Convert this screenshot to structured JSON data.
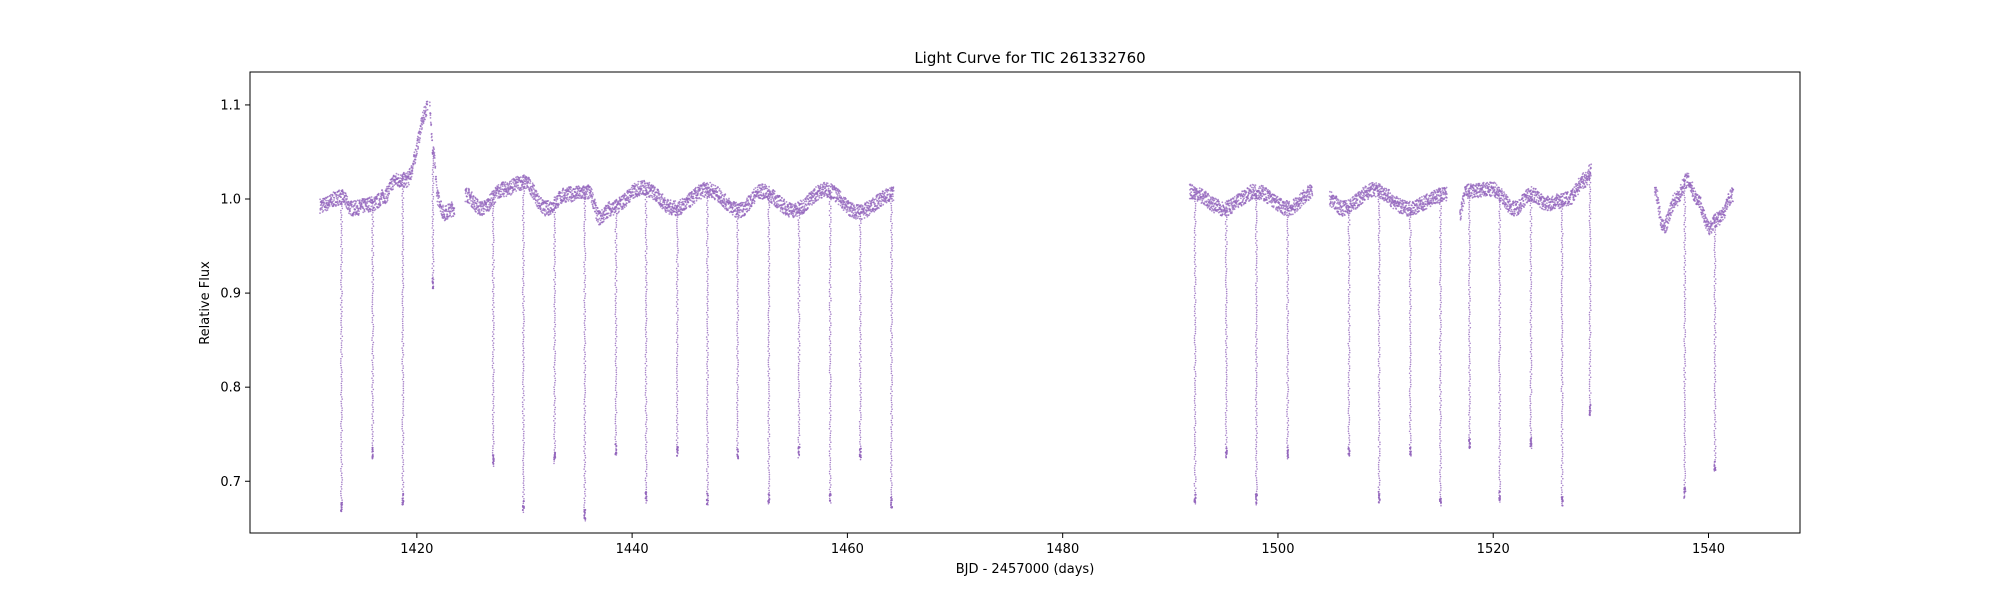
{
  "chart_data": {
    "type": "scatter",
    "title": "Light Curve for TIC 261332760",
    "xlabel": "BJD - 2457000 (days)",
    "ylabel": "Relative Flux",
    "xlim": [
      1404.5,
      1548.5
    ],
    "ylim": [
      0.645,
      1.135
    ],
    "xticks": [
      1420,
      1440,
      1460,
      1480,
      1500,
      1520,
      1540
    ],
    "yticks": [
      0.7,
      0.8,
      0.9,
      1.0,
      1.1
    ],
    "xtick_labels": [
      "1420",
      "1440",
      "1460",
      "1480",
      "1500",
      "1520",
      "1540"
    ],
    "ytick_labels": [
      "0.7",
      "0.8",
      "0.9",
      "1.0",
      "1.1"
    ],
    "grid": false,
    "legend": "none",
    "series_color": "#9467bd",
    "segments": [
      {
        "start": 1411.0,
        "end": 1421.0
      },
      {
        "start": 1421.2,
        "end": 1423.5
      },
      {
        "start": 1424.5,
        "end": 1464.3
      },
      {
        "start": 1491.8,
        "end": 1503.2
      },
      {
        "start": 1504.8,
        "end": 1515.7
      },
      {
        "start": 1516.9,
        "end": 1529.1
      },
      {
        "start": 1535.0,
        "end": 1542.3
      }
    ],
    "baseline_points": [
      {
        "x": 1411.0,
        "y": 0.993
      },
      {
        "x": 1413.0,
        "y": 1.002
      },
      {
        "x": 1414.0,
        "y": 0.99
      },
      {
        "x": 1416.0,
        "y": 0.995
      },
      {
        "x": 1417.0,
        "y": 1.003
      },
      {
        "x": 1418.0,
        "y": 1.02
      },
      {
        "x": 1419.0,
        "y": 1.02
      },
      {
        "x": 1421.2,
        "y": 1.1
      },
      {
        "x": 1421.5,
        "y": 1.05
      },
      {
        "x": 1422.0,
        "y": 1.0
      },
      {
        "x": 1422.5,
        "y": 0.985
      },
      {
        "x": 1423.5,
        "y": 0.99
      },
      {
        "x": 1424.5,
        "y": 1.005
      },
      {
        "x": 1426.0,
        "y": 0.99
      },
      {
        "x": 1428.0,
        "y": 1.01
      },
      {
        "x": 1430.0,
        "y": 1.018
      },
      {
        "x": 1432.0,
        "y": 0.99
      },
      {
        "x": 1434.0,
        "y": 1.005
      },
      {
        "x": 1436.0,
        "y": 1.007
      },
      {
        "x": 1437.0,
        "y": 0.98
      },
      {
        "x": 1438.0,
        "y": 0.99
      },
      {
        "x": 1441.0,
        "y": 1.012
      },
      {
        "x": 1444.0,
        "y": 0.99
      },
      {
        "x": 1447.0,
        "y": 1.01
      },
      {
        "x": 1450.0,
        "y": 0.988
      },
      {
        "x": 1452.0,
        "y": 1.008
      },
      {
        "x": 1455.0,
        "y": 0.988
      },
      {
        "x": 1458.0,
        "y": 1.01
      },
      {
        "x": 1461.0,
        "y": 0.986
      },
      {
        "x": 1464.3,
        "y": 1.005
      },
      {
        "x": 1491.8,
        "y": 1.008
      },
      {
        "x": 1495.0,
        "y": 0.99
      },
      {
        "x": 1498.0,
        "y": 1.008
      },
      {
        "x": 1501.0,
        "y": 0.99
      },
      {
        "x": 1503.2,
        "y": 1.007
      },
      {
        "x": 1504.8,
        "y": 1.0
      },
      {
        "x": 1506.0,
        "y": 0.99
      },
      {
        "x": 1509.0,
        "y": 1.01
      },
      {
        "x": 1512.0,
        "y": 0.99
      },
      {
        "x": 1515.7,
        "y": 1.005
      },
      {
        "x": 1516.9,
        "y": 0.985
      },
      {
        "x": 1517.5,
        "y": 1.008
      },
      {
        "x": 1520.0,
        "y": 1.01
      },
      {
        "x": 1522.0,
        "y": 0.99
      },
      {
        "x": 1523.5,
        "y": 1.005
      },
      {
        "x": 1525.0,
        "y": 0.995
      },
      {
        "x": 1527.0,
        "y": 1.0
      },
      {
        "x": 1528.5,
        "y": 1.02
      },
      {
        "x": 1529.1,
        "y": 1.03
      },
      {
        "x": 1535.0,
        "y": 1.01
      },
      {
        "x": 1535.8,
        "y": 0.97
      },
      {
        "x": 1537.0,
        "y": 1.0
      },
      {
        "x": 1538.0,
        "y": 1.02
      },
      {
        "x": 1539.0,
        "y": 1.0
      },
      {
        "x": 1540.0,
        "y": 0.97
      },
      {
        "x": 1541.0,
        "y": 0.98
      },
      {
        "x": 1542.3,
        "y": 1.005
      }
    ],
    "dips": [
      {
        "x": 1413.0,
        "min": 0.668
      },
      {
        "x": 1415.9,
        "min": 0.724
      },
      {
        "x": 1418.7,
        "min": 0.675
      },
      {
        "x": 1421.5,
        "min": 0.905
      },
      {
        "x": 1427.1,
        "min": 0.716
      },
      {
        "x": 1429.9,
        "min": 0.667
      },
      {
        "x": 1432.8,
        "min": 0.719
      },
      {
        "x": 1435.6,
        "min": 0.658
      },
      {
        "x": 1438.5,
        "min": 0.728
      },
      {
        "x": 1441.3,
        "min": 0.677
      },
      {
        "x": 1444.2,
        "min": 0.727
      },
      {
        "x": 1447.0,
        "min": 0.675
      },
      {
        "x": 1449.8,
        "min": 0.724
      },
      {
        "x": 1452.7,
        "min": 0.676
      },
      {
        "x": 1455.5,
        "min": 0.725
      },
      {
        "x": 1458.4,
        "min": 0.677
      },
      {
        "x": 1461.2,
        "min": 0.723
      },
      {
        "x": 1464.1,
        "min": 0.672
      },
      {
        "x": 1492.3,
        "min": 0.676
      },
      {
        "x": 1495.2,
        "min": 0.725
      },
      {
        "x": 1498.0,
        "min": 0.675
      },
      {
        "x": 1500.9,
        "min": 0.724
      },
      {
        "x": 1506.6,
        "min": 0.727
      },
      {
        "x": 1509.4,
        "min": 0.677
      },
      {
        "x": 1512.3,
        "min": 0.727
      },
      {
        "x": 1515.1,
        "min": 0.674
      },
      {
        "x": 1517.8,
        "min": 0.735
      },
      {
        "x": 1520.6,
        "min": 0.678
      },
      {
        "x": 1523.5,
        "min": 0.735
      },
      {
        "x": 1526.4,
        "min": 0.674
      },
      {
        "x": 1529.0,
        "min": 0.77
      },
      {
        "x": 1537.8,
        "min": 0.682
      },
      {
        "x": 1540.6,
        "min": 0.711
      }
    ]
  }
}
